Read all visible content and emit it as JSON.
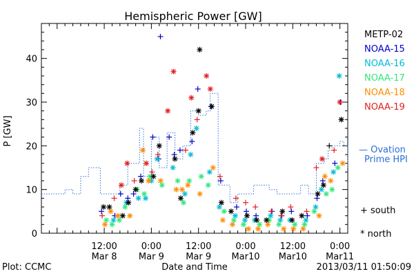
{
  "chart_data": {
    "type": "scatter",
    "title": "Hemispheric Power [GW]",
    "xlabel": "Date and Time",
    "ylabel": "P [GW]",
    "ylim": [
      0,
      48
    ],
    "yticks": [
      0,
      10,
      20,
      30,
      40
    ],
    "xlim": [
      "2013-03-07 20:00",
      "2013-03-11 02:00"
    ],
    "xticks": [
      {
        "at": "2013-03-08 12:00",
        "label": "12:00",
        "sub": "Mar 8"
      },
      {
        "at": "2013-03-09 00:00",
        "label": "0:00",
        "sub": "Mar 9"
      },
      {
        "at": "2013-03-09 12:00",
        "label": "12:00",
        "sub": "Mar 9"
      },
      {
        "at": "2013-03-10 00:00",
        "label": "0:00",
        "sub": "Mar10"
      },
      {
        "at": "2013-03-10 12:00",
        "label": "12:00",
        "sub": "Mar10"
      },
      {
        "at": "2013-03-11 00:00",
        "label": "0:00",
        "sub": "Mar11"
      }
    ],
    "grid": false,
    "legend_position": "right",
    "satellites": [
      {
        "name": "METP-02",
        "color": "#000000"
      },
      {
        "name": "NOAA-15",
        "color": "#0000cc"
      },
      {
        "name": "NOAA-16",
        "color": "#00bcd4"
      },
      {
        "name": "NOAA-17",
        "color": "#2ee87a"
      },
      {
        "name": "NOAA-18",
        "color": "#ff8c00"
      },
      {
        "name": "NOAA-19",
        "color": "#e02020"
      }
    ],
    "marker_legend": {
      "south": "+ south",
      "north": "* north"
    },
    "ovation": {
      "label_line1": "— Ovation",
      "label_line2": "Prime HPI",
      "color": "#2a6fd6",
      "steps": [
        [
          "2013-03-07 20:00",
          9
        ],
        [
          "2013-03-08 02:00",
          10
        ],
        [
          "2013-03-08 04:00",
          9
        ],
        [
          "2013-03-08 06:00",
          13
        ],
        [
          "2013-03-08 08:00",
          15
        ],
        [
          "2013-03-08 11:00",
          9
        ],
        [
          "2013-03-08 16:00",
          11
        ],
        [
          "2013-03-08 18:00",
          16
        ],
        [
          "2013-03-08 21:00",
          24
        ],
        [
          "2013-03-08 22:00",
          13
        ],
        [
          "2013-03-09 00:00",
          22
        ],
        [
          "2013-03-09 02:00",
          15
        ],
        [
          "2013-03-09 04:00",
          23
        ],
        [
          "2013-03-09 06:00",
          17
        ],
        [
          "2013-03-09 08:00",
          20
        ],
        [
          "2013-03-09 10:00",
          28
        ],
        [
          "2013-03-09 12:00",
          27
        ],
        [
          "2013-03-09 14:00",
          28
        ],
        [
          "2013-03-09 15:00",
          32
        ],
        [
          "2013-03-09 17:00",
          11
        ],
        [
          "2013-03-09 20:00",
          7
        ],
        [
          "2013-03-09 22:00",
          9
        ],
        [
          "2013-03-10 02:00",
          11
        ],
        [
          "2013-03-10 06:00",
          10
        ],
        [
          "2013-03-10 08:00",
          9
        ],
        [
          "2013-03-10 14:00",
          11
        ],
        [
          "2013-03-10 16:00",
          9
        ],
        [
          "2013-03-10 18:00",
          16
        ],
        [
          "2013-03-10 20:00",
          17
        ],
        [
          "2013-03-10 21:00",
          19
        ],
        [
          "2013-03-10 22:00",
          20
        ],
        [
          "2013-03-11 00:00",
          21
        ],
        [
          "2013-03-11 01:00",
          20
        ],
        [
          "2013-03-11 02:00",
          15
        ]
      ]
    },
    "points": [
      [
        "2013-03-08 12:00",
        5,
        "+",
        1
      ],
      [
        "2013-03-08 12:00",
        3,
        "*",
        3
      ],
      [
        "2013-03-08 12:00",
        2,
        "*",
        4
      ],
      [
        "2013-03-08 12:00",
        6,
        "*",
        0
      ],
      [
        "2013-03-08 12:00",
        4,
        "+",
        5
      ],
      [
        "2013-03-08 14:00",
        4,
        "+",
        1
      ],
      [
        "2013-03-08 14:00",
        3,
        "*",
        2
      ],
      [
        "2013-03-08 14:00",
        2,
        "*",
        3
      ],
      [
        "2013-03-08 14:00",
        5,
        "*",
        4
      ],
      [
        "2013-03-08 14:00",
        6,
        "*",
        0
      ],
      [
        "2013-03-08 14:00",
        8,
        "+",
        5
      ],
      [
        "2013-03-08 16:00",
        9,
        "+",
        1
      ],
      [
        "2013-03-08 16:00",
        3,
        "*",
        3
      ],
      [
        "2013-03-08 16:00",
        4,
        "*",
        4
      ],
      [
        "2013-03-08 16:00",
        4,
        "*",
        0
      ],
      [
        "2013-03-08 16:00",
        11,
        "*",
        5
      ],
      [
        "2013-03-08 18:00",
        8,
        "+",
        1
      ],
      [
        "2013-03-08 18:00",
        7,
        "*",
        2
      ],
      [
        "2013-03-08 18:00",
        6,
        "*",
        3
      ],
      [
        "2013-03-08 18:00",
        4,
        "*",
        4
      ],
      [
        "2013-03-08 18:00",
        7,
        "*",
        0
      ],
      [
        "2013-03-08 18:00",
        16,
        "*",
        5
      ],
      [
        "2013-03-08 20:00",
        9,
        "+",
        1
      ],
      [
        "2013-03-08 20:00",
        8,
        "*",
        2
      ],
      [
        "2013-03-08 20:00",
        10,
        "*",
        3
      ],
      [
        "2013-03-08 20:00",
        10,
        "*",
        0
      ],
      [
        "2013-03-08 20:00",
        12,
        "+",
        5
      ],
      [
        "2013-03-08 22:00",
        13,
        "+",
        1
      ],
      [
        "2013-03-08 22:00",
        8,
        "*",
        2
      ],
      [
        "2013-03-08 22:00",
        9,
        "*",
        3
      ],
      [
        "2013-03-08 22:00",
        19,
        "*",
        4
      ],
      [
        "2013-03-08 22:00",
        12,
        "*",
        0
      ],
      [
        "2013-03-08 22:00",
        16,
        "*",
        5
      ],
      [
        "2013-03-09 00:00",
        22,
        "+",
        1
      ],
      [
        "2013-03-09 00:00",
        12,
        "*",
        2
      ],
      [
        "2013-03-09 00:00",
        13,
        "*",
        3
      ],
      [
        "2013-03-09 00:00",
        12,
        "*",
        4
      ],
      [
        "2013-03-09 00:00",
        13,
        "*",
        0
      ],
      [
        "2013-03-09 00:00",
        14,
        "+",
        5
      ],
      [
        "2013-03-09 02:00",
        17,
        "+",
        1
      ],
      [
        "2013-03-09 02:00",
        17,
        "*",
        2
      ],
      [
        "2013-03-09 02:00",
        11,
        "*",
        3
      ],
      [
        "2013-03-09 02:00",
        12,
        "*",
        4
      ],
      [
        "2013-03-09 02:00",
        20,
        "*",
        0
      ],
      [
        "2013-03-09 02:00",
        18,
        "+",
        5
      ],
      [
        "2013-03-09 03:00",
        45,
        "+",
        1
      ],
      [
        "2013-03-09 04:00",
        22,
        "+",
        1
      ],
      [
        "2013-03-09 04:00",
        28,
        "*",
        5
      ],
      [
        "2013-03-09 06:00",
        18,
        "+",
        1
      ],
      [
        "2013-03-09 06:00",
        15,
        "*",
        2
      ],
      [
        "2013-03-09 06:00",
        12,
        "*",
        3
      ],
      [
        "2013-03-09 06:00",
        10,
        "*",
        4
      ],
      [
        "2013-03-09 06:00",
        17,
        "*",
        0
      ],
      [
        "2013-03-09 06:00",
        37,
        "*",
        5
      ],
      [
        "2013-03-09 08:00",
        19,
        "+",
        1
      ],
      [
        "2013-03-09 08:00",
        9,
        "*",
        2
      ],
      [
        "2013-03-09 08:00",
        7,
        "*",
        3
      ],
      [
        "2013-03-09 08:00",
        10,
        "*",
        4
      ],
      [
        "2013-03-09 08:00",
        8,
        "*",
        0
      ],
      [
        "2013-03-09 08:00",
        19,
        "+",
        5
      ],
      [
        "2013-03-09 10:00",
        21,
        "+",
        1
      ],
      [
        "2013-03-09 10:00",
        18,
        "*",
        2
      ],
      [
        "2013-03-09 10:00",
        12,
        "*",
        3
      ],
      [
        "2013-03-09 10:00",
        11,
        "*",
        4
      ],
      [
        "2013-03-09 10:00",
        23,
        "*",
        0
      ],
      [
        "2013-03-09 10:00",
        31,
        "*",
        5
      ],
      [
        "2013-03-09 12:00",
        33,
        "+",
        1
      ],
      [
        "2013-03-09 12:00",
        24,
        "*",
        2
      ],
      [
        "2013-03-09 12:00",
        13,
        "*",
        3
      ],
      [
        "2013-03-09 12:00",
        9,
        "*",
        4
      ],
      [
        "2013-03-09 12:00",
        28,
        "*",
        0
      ],
      [
        "2013-03-09 12:00",
        26,
        "+",
        5
      ],
      [
        "2013-03-09 13:00",
        42,
        "*",
        0
      ],
      [
        "2013-03-09 13:30",
        36,
        "*",
        5
      ],
      [
        "2013-03-09 15:00",
        29,
        "+",
        1
      ],
      [
        "2013-03-09 15:00",
        14,
        "*",
        2
      ],
      [
        "2013-03-09 15:00",
        11,
        "*",
        3
      ],
      [
        "2013-03-09 15:00",
        15,
        "*",
        4
      ],
      [
        "2013-03-09 15:00",
        29,
        "*",
        0
      ],
      [
        "2013-03-09 15:00",
        33,
        "*",
        5
      ],
      [
        "2013-03-09 18:00",
        12,
        "+",
        1
      ],
      [
        "2013-03-09 18:00",
        6,
        "*",
        2
      ],
      [
        "2013-03-09 18:00",
        5,
        "*",
        3
      ],
      [
        "2013-03-09 18:00",
        3,
        "*",
        4
      ],
      [
        "2013-03-09 18:00",
        7,
        "*",
        0
      ],
      [
        "2013-03-09 18:00",
        13,
        "+",
        5
      ],
      [
        "2013-03-09 21:00",
        6,
        "+",
        1
      ],
      [
        "2013-03-09 21:00",
        4,
        "*",
        2
      ],
      [
        "2013-03-09 21:00",
        3,
        "*",
        3
      ],
      [
        "2013-03-09 21:00",
        2,
        "*",
        4
      ],
      [
        "2013-03-09 21:00",
        5,
        "*",
        0
      ],
      [
        "2013-03-09 21:00",
        8,
        "+",
        5
      ],
      [
        "2013-03-10 00:00",
        5,
        "+",
        1
      ],
      [
        "2013-03-10 00:00",
        3,
        "*",
        2
      ],
      [
        "2013-03-10 00:00",
        2,
        "*",
        3
      ],
      [
        "2013-03-10 00:00",
        1,
        "*",
        4
      ],
      [
        "2013-03-10 00:00",
        4,
        "*",
        0
      ],
      [
        "2013-03-10 00:00",
        7,
        "+",
        5
      ],
      [
        "2013-03-10 03:00",
        4,
        "+",
        1
      ],
      [
        "2013-03-10 03:00",
        3,
        "*",
        2
      ],
      [
        "2013-03-10 03:00",
        2,
        "*",
        3
      ],
      [
        "2013-03-10 03:00",
        1,
        "*",
        4
      ],
      [
        "2013-03-10 03:00",
        3,
        "*",
        0
      ],
      [
        "2013-03-10 03:00",
        6,
        "+",
        5
      ],
      [
        "2013-03-10 06:00",
        5,
        "+",
        1
      ],
      [
        "2013-03-10 06:00",
        4,
        "*",
        2
      ],
      [
        "2013-03-10 06:00",
        3,
        "*",
        3
      ],
      [
        "2013-03-10 06:00",
        2,
        "*",
        4
      ],
      [
        "2013-03-10 06:00",
        3,
        "*",
        0
      ],
      [
        "2013-03-10 06:00",
        5,
        "+",
        5
      ],
      [
        "2013-03-10 09:00",
        4,
        "+",
        1
      ],
      [
        "2013-03-10 09:00",
        3,
        "*",
        2
      ],
      [
        "2013-03-10 09:00",
        2,
        "*",
        3
      ],
      [
        "2013-03-10 09:00",
        1,
        "*",
        4
      ],
      [
        "2013-03-10 09:00",
        5,
        "*",
        0
      ],
      [
        "2013-03-10 09:00",
        4,
        "+",
        5
      ],
      [
        "2013-03-10 12:00",
        5,
        "+",
        1
      ],
      [
        "2013-03-10 12:00",
        3,
        "*",
        2
      ],
      [
        "2013-03-10 12:00",
        2,
        "*",
        3
      ],
      [
        "2013-03-10 12:00",
        1,
        "*",
        4
      ],
      [
        "2013-03-10 12:00",
        3,
        "*",
        0
      ],
      [
        "2013-03-10 12:00",
        6,
        "+",
        5
      ],
      [
        "2013-03-10 15:00",
        4,
        "+",
        1
      ],
      [
        "2013-03-10 15:00",
        3,
        "*",
        2
      ],
      [
        "2013-03-10 15:00",
        2,
        "*",
        3
      ],
      [
        "2013-03-10 15:00",
        1,
        "*",
        4
      ],
      [
        "2013-03-10 15:00",
        4,
        "*",
        0
      ],
      [
        "2013-03-10 15:00",
        5,
        "+",
        5
      ],
      [
        "2013-03-10 18:00",
        8,
        "+",
        1
      ],
      [
        "2013-03-10 18:00",
        6,
        "*",
        2
      ],
      [
        "2013-03-10 18:00",
        5,
        "*",
        3
      ],
      [
        "2013-03-10 18:00",
        4,
        "*",
        4
      ],
      [
        "2013-03-10 18:00",
        9,
        "*",
        0
      ],
      [
        "2013-03-10 18:00",
        15,
        "+",
        5
      ],
      [
        "2013-03-10 20:00",
        12,
        "+",
        1
      ],
      [
        "2013-03-10 20:00",
        10,
        "*",
        2
      ],
      [
        "2013-03-10 20:00",
        9,
        "*",
        3
      ],
      [
        "2013-03-10 20:00",
        13,
        "*",
        4
      ],
      [
        "2013-03-10 20:00",
        11,
        "*",
        0
      ],
      [
        "2013-03-10 20:00",
        17,
        "*",
        5
      ],
      [
        "2013-03-10 22:00",
        16,
        "+",
        1
      ],
      [
        "2013-03-10 22:00",
        14,
        "*",
        2
      ],
      [
        "2013-03-10 22:00",
        10,
        "*",
        3
      ],
      [
        "2013-03-10 22:00",
        12,
        "*",
        4
      ],
      [
        "2013-03-10 22:00",
        20,
        "+",
        0
      ],
      [
        "2013-03-10 22:00",
        19,
        "+",
        5
      ],
      [
        "2013-03-11 00:00",
        30,
        "+",
        1
      ],
      [
        "2013-03-11 00:00",
        36,
        "*",
        2
      ],
      [
        "2013-03-11 00:00",
        15,
        "*",
        3
      ],
      [
        "2013-03-11 00:00",
        16,
        "*",
        4
      ],
      [
        "2013-03-11 00:00",
        26,
        "*",
        0
      ],
      [
        "2013-03-11 00:00",
        30,
        "*",
        5
      ]
    ]
  },
  "footer": {
    "plot_credit": "Plot: CCMC",
    "timestamp": "2013/03/11 01:50:09"
  }
}
